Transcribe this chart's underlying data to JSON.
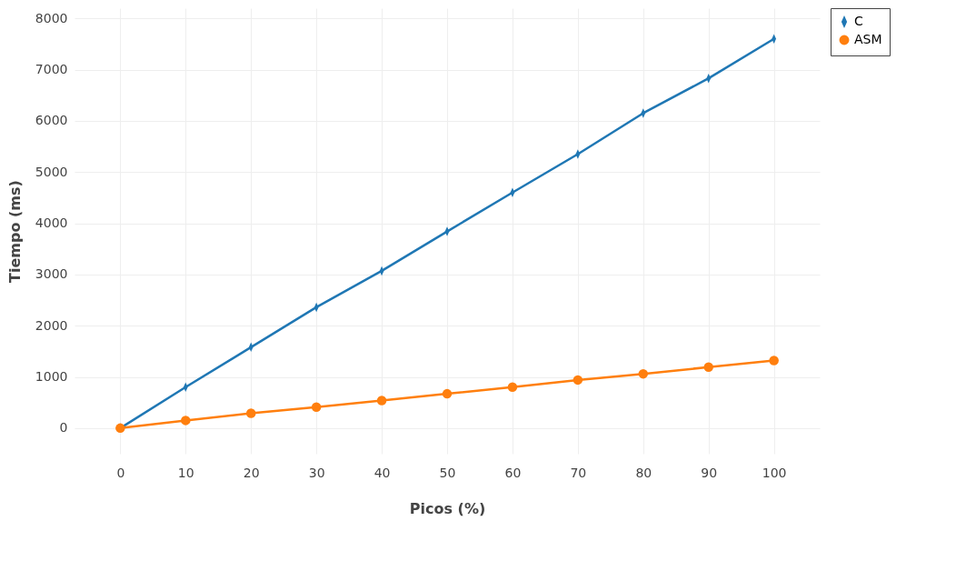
{
  "chart_data": {
    "type": "line",
    "xlabel": "Picos (%)",
    "ylabel": "Tiempo (ms)",
    "x": [
      0,
      10,
      20,
      30,
      40,
      50,
      60,
      70,
      80,
      90,
      100
    ],
    "series": [
      {
        "name": "C",
        "color": "#1f77b4",
        "marker": "diamond",
        "values": [
          0,
          800,
          1580,
          2360,
          3070,
          3840,
          4600,
          5350,
          6150,
          6830,
          7600
        ]
      },
      {
        "name": "ASM",
        "color": "#ff7f0e",
        "marker": "circle",
        "values": [
          0,
          150,
          290,
          410,
          540,
          670,
          800,
          940,
          1060,
          1190,
          1320
        ]
      }
    ],
    "xlim": [
      -7,
      107
    ],
    "ylim": [
      -500,
      8200
    ],
    "xticks": [
      0,
      10,
      20,
      30,
      40,
      50,
      60,
      70,
      80,
      90,
      100
    ],
    "yticks": [
      0,
      1000,
      2000,
      3000,
      4000,
      5000,
      6000,
      7000,
      8000
    ],
    "grid": true,
    "legend": "top right",
    "line_style": "solid"
  }
}
